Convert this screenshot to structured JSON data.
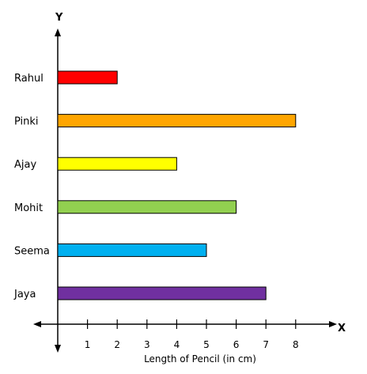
{
  "chart_data": {
    "type": "bar",
    "orientation": "horizontal",
    "categories": [
      "Rahul",
      "Pinki",
      "Ajay",
      "Mohit",
      "Seema",
      "Jaya"
    ],
    "values": [
      2,
      8,
      4,
      6,
      5,
      7
    ],
    "colors": [
      "#ff0000",
      "#ffa500",
      "#ffff00",
      "#92d050",
      "#00b0f0",
      "#7030a0"
    ],
    "xlabel": "Length of Pencil (in cm)",
    "x_axis_letter": "X",
    "y_axis_letter": "Y",
    "xticks": [
      1,
      2,
      3,
      4,
      5,
      6,
      7,
      8
    ],
    "xlim": [
      0,
      9
    ],
    "grid": false
  }
}
